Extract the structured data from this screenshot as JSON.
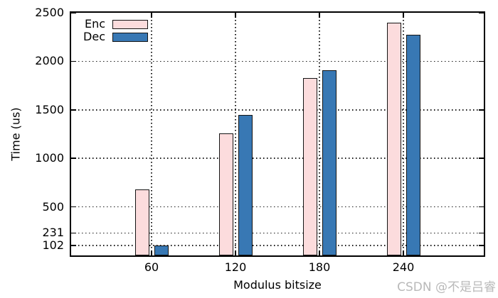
{
  "watermark": "CSDN @不是吕睿",
  "colors": {
    "enc_fill": "#fcdcdd",
    "dec_fill": "#3878b4",
    "bar_border": "#141414",
    "grid": "#1a1a1a",
    "frame": "#000000",
    "watermark": "#b9b9b9",
    "background": "#ffffff"
  },
  "chart_data": {
    "type": "bar",
    "title": "",
    "xlabel": "Modulus bitsize",
    "ylabel": "Time (us)",
    "categories": [
      "60",
      "120",
      "180",
      "240"
    ],
    "series": [
      {
        "name": "Enc",
        "color": "#fcdcdd",
        "values": [
          681,
          1260,
          1830,
          2400
        ]
      },
      {
        "name": "Dec",
        "color": "#3878b4",
        "values": [
          102,
          1450,
          1910,
          2270
        ]
      }
    ],
    "ylim": [
      0,
      2500
    ],
    "yticks": [
      102,
      231,
      500,
      1000,
      1500,
      2000,
      2500
    ],
    "grid": true,
    "grid_style": "dotted",
    "legend_position": "top-left"
  }
}
